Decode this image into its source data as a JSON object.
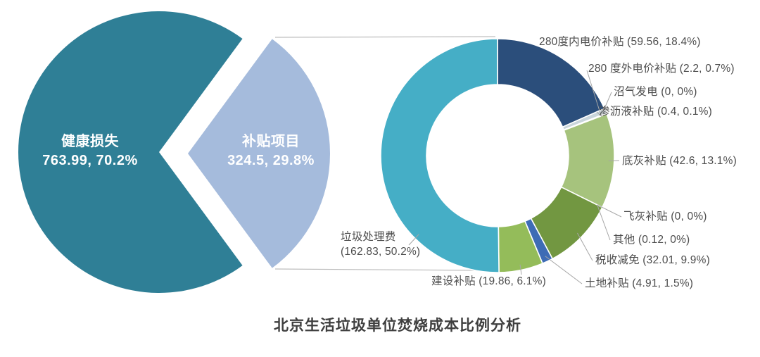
{
  "title": "北京生活垃圾单位焚烧成本比例分析",
  "chart_data": {
    "type": "pie",
    "title": "北京生活垃圾单位焚烧成本比例分析",
    "layout": "nested exploded pie: left overview pie with pulled-out slice, right donut breakdown of that slice; labels outside with leader lines; no axes; no legend",
    "charts": [
      {
        "name": "total-cost-overview",
        "type": "pie",
        "slices": [
          {
            "name": "健康损失",
            "value": 763.99,
            "pct": 70.2,
            "name_text": "健康损失",
            "value_text": "763.99, 70.2%",
            "color": "#2F7F96"
          },
          {
            "name": "补贴项目",
            "value": 324.5,
            "pct": 29.8,
            "name_text": "补贴项目",
            "value_text": "324.5, 29.8%",
            "color": "#A5BBDC"
          }
        ]
      },
      {
        "name": "subsidy-breakdown",
        "type": "donut",
        "slices": [
          {
            "name": "280度内电价补贴",
            "value": 59.56,
            "pct": 18.4,
            "label": "280度内电价补贴 (59.56, 18.4%)",
            "color": "#2B4E7B"
          },
          {
            "name": "280 度外电价补贴",
            "value": 2.2,
            "pct": 0.7,
            "label": "280 度外电价补贴 (2.2, 0.7%)",
            "color": "#C9D5DB"
          },
          {
            "name": "沼气发电",
            "value": 0,
            "pct": 0,
            "label": "沼气发电 (0, 0%)",
            "color": "#9DB0B8"
          },
          {
            "name": "渗沥液补贴",
            "value": 0.4,
            "pct": 0.1,
            "label": "渗沥液补贴 (0.4, 0.1%)",
            "color": "#44483E"
          },
          {
            "name": "底灰补贴",
            "value": 42.6,
            "pct": 13.1,
            "label": "底灰补贴 (42.6, 13.1%)",
            "color": "#A6C37D"
          },
          {
            "name": "飞灰补贴",
            "value": 0,
            "pct": 0,
            "label": "飞灰补贴 (0, 0%)",
            "color": "#B7CE8F"
          },
          {
            "name": "其他",
            "value": 0.12,
            "pct": 0,
            "label": "其他 (0.12, 0%)",
            "color": "#87A653"
          },
          {
            "name": "税收减免",
            "value": 32.01,
            "pct": 9.9,
            "label": "税收减免 (32.01, 9.9%)",
            "color": "#729741"
          },
          {
            "name": "土地补贴",
            "value": 4.91,
            "pct": 1.5,
            "label": "土地补贴 (4.91, 1.5%)",
            "color": "#3E6CB5"
          },
          {
            "name": "建设补贴",
            "value": 19.86,
            "pct": 6.1,
            "label": "建设补贴 (19.86, 6.1%)",
            "color": "#94BC5A"
          },
          {
            "name": "垃圾处理费",
            "value": 162.83,
            "pct": 50.2,
            "label": "垃圾处理费 (162.83, 50.2%)",
            "label_line1": "垃圾处理费",
            "label_line2": "(162.83, 50.2%)",
            "color": "#45AEC6"
          }
        ]
      }
    ]
  }
}
